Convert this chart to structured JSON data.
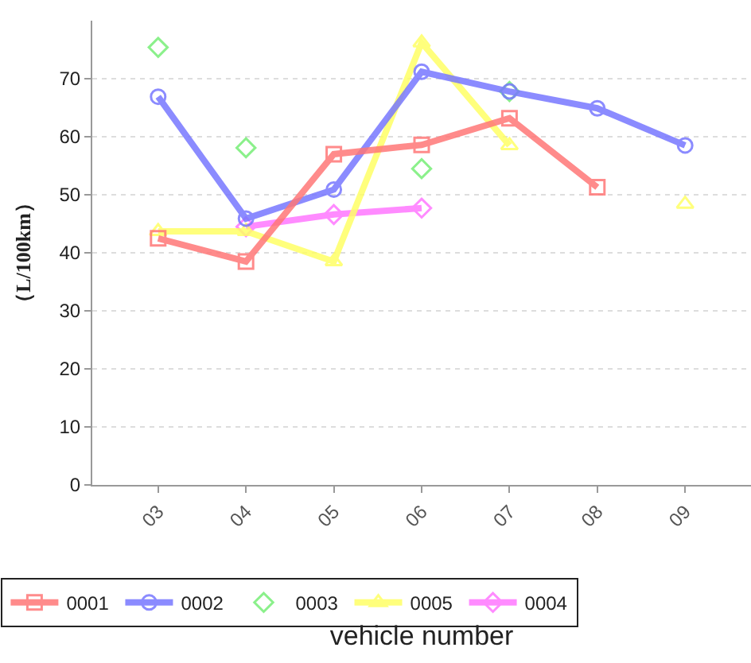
{
  "chart_data": {
    "type": "line",
    "xlabel": "vehicle number",
    "ylabel": "（L/100km）",
    "categories": [
      "03",
      "04",
      "05",
      "06",
      "07",
      "08",
      "09"
    ],
    "series": [
      {
        "name": "0001",
        "color": "#ff7777",
        "marker": "square",
        "values": [
          42.5,
          38.5,
          57.0,
          58.6,
          63.2,
          51.3,
          null
        ]
      },
      {
        "name": "0002",
        "color": "#7777ff",
        "marker": "circle",
        "values": [
          66.9,
          45.9,
          50.9,
          71.2,
          67.8,
          64.9,
          58.5
        ]
      },
      {
        "name": "0003",
        "type": "scatter",
        "color": "#77ee77",
        "marker": "diamond",
        "values": [
          75.4,
          58.1,
          null,
          54.5,
          67.8,
          null,
          null
        ]
      },
      {
        "name": "0005",
        "color": "#ffff66",
        "marker": "triangle",
        "values": [
          43.7,
          43.7,
          38.5,
          76.2,
          58.5,
          null,
          48.4
        ]
      },
      {
        "name": "0004",
        "color": "#ff77ff",
        "marker": "diamond",
        "values": [
          null,
          44.5,
          46.6,
          47.7,
          null,
          null,
          null
        ]
      }
    ],
    "ylim": [
      0,
      80
    ],
    "yticks": [
      0,
      10,
      20,
      30,
      40,
      50,
      60,
      70
    ],
    "grid": "y",
    "legend": "bottom"
  }
}
